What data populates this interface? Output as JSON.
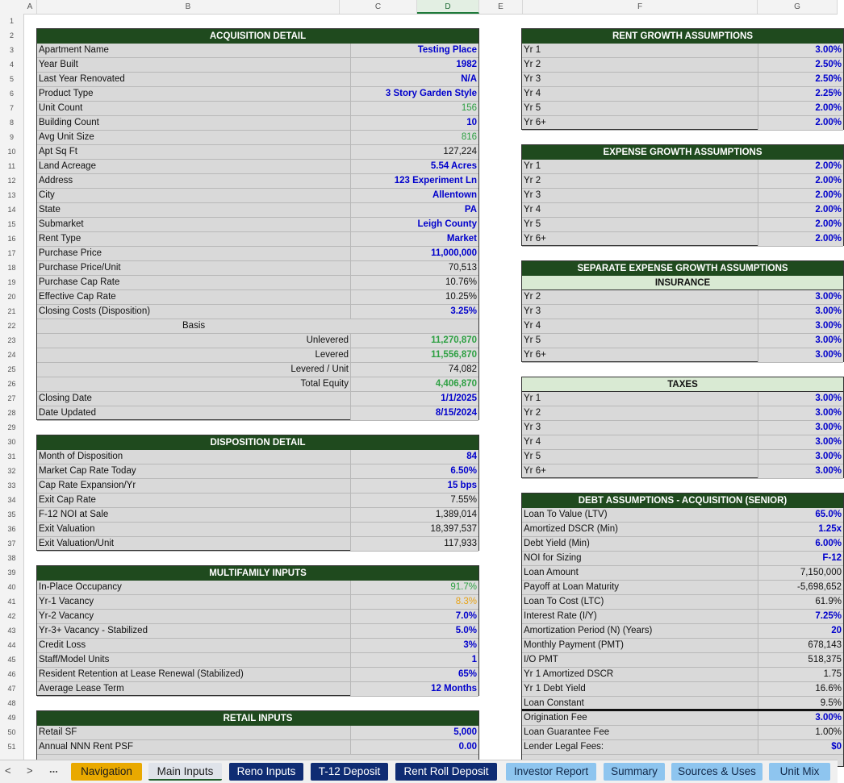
{
  "columns": [
    "A",
    "B",
    "C",
    "D",
    "E",
    "F",
    "G"
  ],
  "rows": [
    "1",
    "2",
    "3",
    "4",
    "5",
    "6",
    "7",
    "8",
    "9",
    "10",
    "11",
    "12",
    "13",
    "14",
    "15",
    "16",
    "17",
    "18",
    "19",
    "20",
    "21",
    "22",
    "23",
    "24",
    "25",
    "26",
    "27",
    "28",
    "29",
    "30",
    "31",
    "32",
    "33",
    "34",
    "35",
    "36",
    "37",
    "38",
    "39",
    "40",
    "41",
    "42",
    "43",
    "44",
    "45",
    "46",
    "47",
    "48",
    "49",
    "50",
    "51"
  ],
  "acquisition": {
    "title": "ACQUISITION DETAIL",
    "items": [
      {
        "label": "Apartment Name",
        "value": "Testing Place",
        "style": "blue"
      },
      {
        "label": "Year Built",
        "value": "1982",
        "style": "blue"
      },
      {
        "label": "Last Year Renovated",
        "value": "N/A",
        "style": "blue"
      },
      {
        "label": "Product Type",
        "value": "3 Story Garden Style",
        "style": "blue"
      },
      {
        "label": "Unit Count",
        "value": "156",
        "style": "green"
      },
      {
        "label": "Building Count",
        "value": "10",
        "style": "blue"
      },
      {
        "label": "Avg Unit Size",
        "value": "816",
        "style": "green"
      },
      {
        "label": "Apt Sq Ft",
        "value": "127,224",
        "style": "black"
      },
      {
        "label": "Land Acreage",
        "value": "5.54 Acres",
        "style": "blue"
      },
      {
        "label": "Address",
        "value": "123 Experiment Ln",
        "style": "blue"
      },
      {
        "label": "City",
        "value": "Allentown",
        "style": "blue"
      },
      {
        "label": "State",
        "value": "PA",
        "style": "blue"
      },
      {
        "label": "Submarket",
        "value": "Leigh County",
        "style": "blue"
      },
      {
        "label": "Rent Type",
        "value": "Market",
        "style": "blue"
      },
      {
        "label": "Purchase Price",
        "value": "11,000,000",
        "style": "blue"
      },
      {
        "label": "Purchase Price/Unit",
        "value": "70,513",
        "style": "black"
      },
      {
        "label": "Purchase Cap Rate",
        "value": "10.76%",
        "style": "black"
      },
      {
        "label": "Effective Cap Rate",
        "value": "10.25%",
        "style": "black"
      },
      {
        "label": "Closing Costs (Disposition)",
        "value": "3.25%",
        "style": "blue"
      }
    ],
    "basis_label": "Basis",
    "basis": [
      {
        "label": "Unlevered",
        "value": "11,270,870",
        "style": "gbold"
      },
      {
        "label": "Levered",
        "value": "11,556,870",
        "style": "gbold"
      },
      {
        "label": "Levered / Unit",
        "value": "74,082",
        "style": "black"
      },
      {
        "label": "Total Equity",
        "value": "4,406,870",
        "style": "gbold"
      }
    ],
    "dates": [
      {
        "label": "Closing Date",
        "value": "1/1/2025",
        "style": "blue"
      },
      {
        "label": "Date Updated",
        "value": "8/15/2024",
        "style": "blue"
      }
    ]
  },
  "disposition": {
    "title": "DISPOSITION DETAIL",
    "items": [
      {
        "label": "Month of Disposition",
        "value": "84",
        "style": "blue"
      },
      {
        "label": "Market Cap Rate Today",
        "value": "6.50%",
        "style": "blue"
      },
      {
        "label": "Cap Rate Expansion/Yr",
        "value": "15 bps",
        "style": "blue"
      },
      {
        "label": "Exit Cap Rate",
        "value": "7.55%",
        "style": "black"
      },
      {
        "label": "F-12 NOI at Sale",
        "value": "1,389,014",
        "style": "black"
      },
      {
        "label": "Exit Valuation",
        "value": "18,397,537",
        "style": "black"
      },
      {
        "label": "Exit Valuation/Unit",
        "value": "117,933",
        "style": "black"
      }
    ]
  },
  "multifamily": {
    "title": "MULTIFAMILY INPUTS",
    "items": [
      {
        "label": "In-Place Occupancy",
        "value": "91.7%",
        "style": "green"
      },
      {
        "label": "Yr-1 Vacancy",
        "value": "8.3%",
        "style": "orange"
      },
      {
        "label": "Yr-2 Vacancy",
        "value": "7.0%",
        "style": "blue"
      },
      {
        "label": "Yr-3+ Vacancy - Stabilized",
        "value": "5.0%",
        "style": "blue"
      },
      {
        "label": "Credit Loss",
        "value": "3%",
        "style": "blue"
      },
      {
        "label": "Staff/Model Units",
        "value": "1",
        "style": "blue"
      },
      {
        "label": "Resident Retention at Lease Renewal (Stabilized)",
        "value": "65%",
        "style": "blue"
      },
      {
        "label": "Average Lease Term",
        "value": "12 Months",
        "style": "blue"
      }
    ]
  },
  "retail": {
    "title": "RETAIL INPUTS",
    "items": [
      {
        "label": "Retail SF",
        "value": "5,000",
        "style": "blue"
      },
      {
        "label": "Annual NNN Rent PSF",
        "value": "0.00",
        "style": "blue"
      }
    ]
  },
  "rent_growth": {
    "title": "RENT GROWTH ASSUMPTIONS",
    "items": [
      {
        "label": "Yr 1",
        "value": "3.00%",
        "style": "blue"
      },
      {
        "label": "Yr 2",
        "value": "2.50%",
        "style": "blue"
      },
      {
        "label": "Yr 3",
        "value": "2.50%",
        "style": "blue"
      },
      {
        "label": "Yr 4",
        "value": "2.25%",
        "style": "blue"
      },
      {
        "label": "Yr 5",
        "value": "2.00%",
        "style": "blue"
      },
      {
        "label": "Yr 6+",
        "value": "2.00%",
        "style": "blue"
      }
    ]
  },
  "expense_growth": {
    "title": "EXPENSE GROWTH ASSUMPTIONS",
    "items": [
      {
        "label": "Yr 1",
        "value": "2.00%",
        "style": "blue"
      },
      {
        "label": "Yr 2",
        "value": "2.00%",
        "style": "blue"
      },
      {
        "label": "Yr 3",
        "value": "2.00%",
        "style": "blue"
      },
      {
        "label": "Yr 4",
        "value": "2.00%",
        "style": "blue"
      },
      {
        "label": "Yr 5",
        "value": "2.00%",
        "style": "blue"
      },
      {
        "label": "Yr 6+",
        "value": "2.00%",
        "style": "blue"
      }
    ]
  },
  "separate_expense": {
    "title": "SEPARATE EXPENSE GROWTH ASSUMPTIONS",
    "insurance_title": "INSURANCE",
    "insurance": [
      {
        "label": "Yr 2",
        "value": "3.00%",
        "style": "blue"
      },
      {
        "label": "Yr 3",
        "value": "3.00%",
        "style": "blue"
      },
      {
        "label": "Yr 4",
        "value": "3.00%",
        "style": "blue"
      },
      {
        "label": "Yr 5",
        "value": "3.00%",
        "style": "blue"
      },
      {
        "label": "Yr 6+",
        "value": "3.00%",
        "style": "blue"
      }
    ],
    "taxes_title": "TAXES",
    "taxes": [
      {
        "label": "Yr 1",
        "value": "3.00%",
        "style": "blue"
      },
      {
        "label": "Yr 2",
        "value": "3.00%",
        "style": "blue"
      },
      {
        "label": "Yr 3",
        "value": "3.00%",
        "style": "blue"
      },
      {
        "label": "Yr 4",
        "value": "3.00%",
        "style": "blue"
      },
      {
        "label": "Yr 5",
        "value": "3.00%",
        "style": "blue"
      },
      {
        "label": "Yr 6+",
        "value": "3.00%",
        "style": "blue"
      }
    ]
  },
  "debt": {
    "title": "DEBT ASSUMPTIONS - ACQUISITION (SENIOR)",
    "items": [
      {
        "label": "Loan To Value (LTV)",
        "value": "65.0%",
        "style": "blue"
      },
      {
        "label": "Amortized DSCR (Min)",
        "value": "1.25x",
        "style": "blue"
      },
      {
        "label": "Debt Yield (Min)",
        "value": "6.00%",
        "style": "blue"
      },
      {
        "label": "NOI for Sizing",
        "value": "F-12",
        "style": "blue"
      },
      {
        "label": "Loan Amount",
        "value": "7,150,000",
        "style": "black"
      },
      {
        "label": "Payoff at Loan Maturity",
        "value": "-5,698,652",
        "style": "black"
      },
      {
        "label": "Loan To Cost (LTC)",
        "value": "61.9%",
        "style": "black"
      },
      {
        "label": "Interest Rate (I/Y)",
        "value": "7.25%",
        "style": "blue"
      },
      {
        "label": "Amortization Period (N) (Years)",
        "value": "20",
        "style": "blue"
      },
      {
        "label": "Monthly Payment (PMT)",
        "value": "678,143",
        "style": "black"
      },
      {
        "label": "I/O PMT",
        "value": "518,375",
        "style": "black"
      },
      {
        "label": "Yr 1 Amortized DSCR",
        "value": "1.75",
        "style": "black"
      },
      {
        "label": "Yr 1 Debt Yield",
        "value": "16.6%",
        "style": "black"
      },
      {
        "label": "Loan Constant",
        "value": "9.5%",
        "style": "black"
      },
      {
        "label": "Origination Fee",
        "value": "3.00%",
        "style": "blue"
      },
      {
        "label": "Loan Guarantee Fee",
        "value": "1.00%",
        "style": "black"
      },
      {
        "label": "Lender Legal Fees:",
        "value": "$0",
        "style": "blue"
      }
    ]
  },
  "tabs": [
    {
      "label": "Navigation",
      "style": "t-nav"
    },
    {
      "label": "Main Inputs",
      "style": "t-main"
    },
    {
      "label": "Reno Inputs",
      "style": "t-dark"
    },
    {
      "label": "T-12 Deposit",
      "style": "t-dark"
    },
    {
      "label": "Rent Roll Deposit",
      "style": "t-dark"
    },
    {
      "label": "Investor Report",
      "style": "t-light"
    },
    {
      "label": "Summary",
      "style": "t-light"
    },
    {
      "label": "Sources & Uses",
      "style": "t-light"
    },
    {
      "label": "Unit Mix",
      "style": "t-light"
    }
  ],
  "tab_nav": {
    "prev": "<",
    "next": ">",
    "more": "..."
  }
}
